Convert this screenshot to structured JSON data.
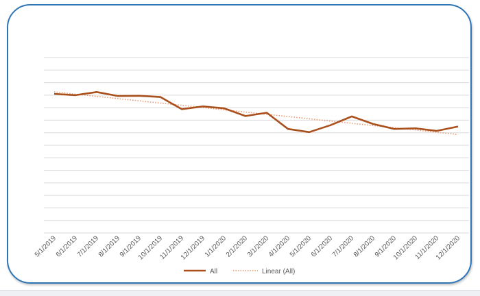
{
  "chart_data": {
    "type": "line",
    "categories": [
      "5/1/2019",
      "6/1/2019",
      "7/1/2019",
      "8/1/2019",
      "9/1/2019",
      "10/1/2019",
      "11/1/2019",
      "12/1/2019",
      "1/1/2020",
      "2/1/2020",
      "3/1/2020",
      "4/1/2020",
      "5/1/2020",
      "6/1/2020",
      "7/1/2020",
      "8/1/2020",
      "9/1/2020",
      "10/1/2020",
      "11/1/2020",
      "12/1/2020"
    ],
    "series": [
      {
        "name": "All",
        "values": [
          81,
          80,
          82.5,
          79.3,
          79.5,
          78.5,
          68.8,
          71,
          69.5,
          63.3,
          66,
          53,
          50.5,
          56,
          63,
          57,
          53,
          53.5,
          51.5,
          55
        ],
        "color": "#a9501d"
      }
    ],
    "trendline": {
      "name": "Linear (All)",
      "type": "linear",
      "color": "#e8926a"
    },
    "grid": true,
    "legend_position": "bottom",
    "ylim": [
      -30,
      110
    ],
    "title": "",
    "xlabel": "",
    "ylabel": ""
  }
}
